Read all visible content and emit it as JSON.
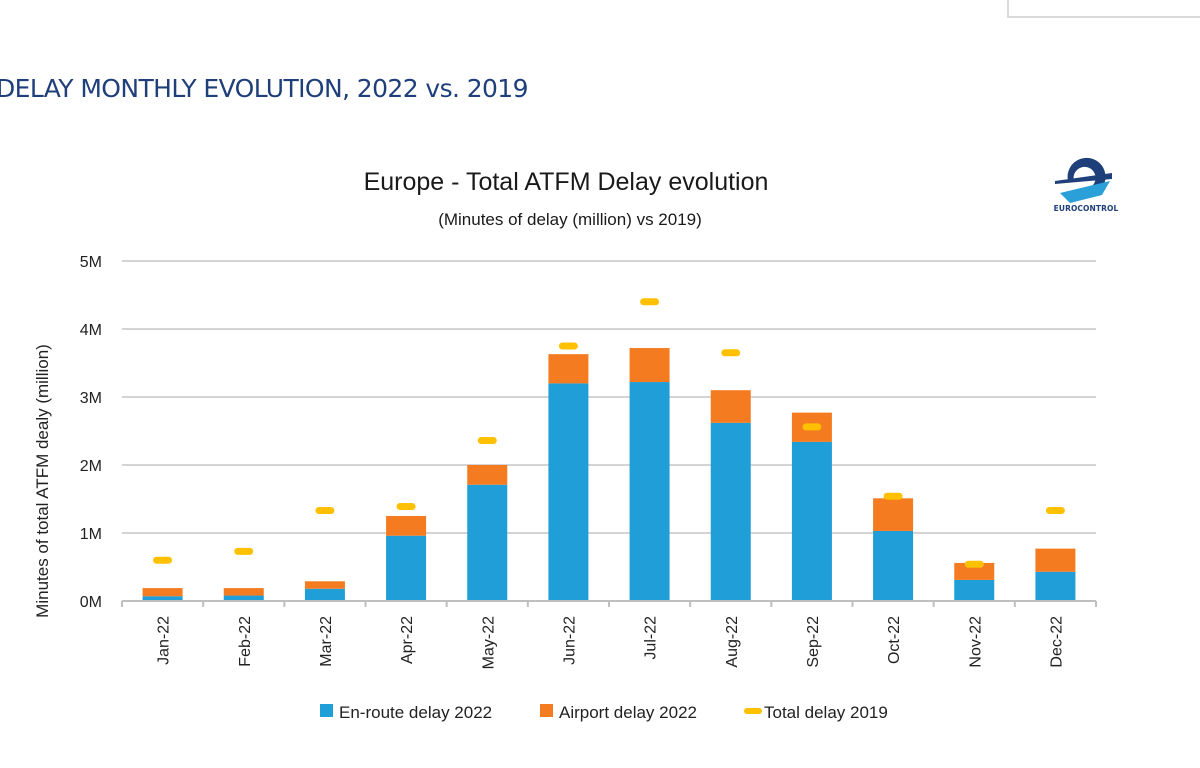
{
  "page": {
    "slide_title": "DELAY MONTHLY EVOLUTION, 2022 vs. 2019",
    "logo_text": "EUROCONTROL"
  },
  "chart_data": {
    "type": "bar",
    "stacked": true,
    "title": "Europe - Total ATFM Delay evolution",
    "subtitle": "(Minutes of delay (million) vs 2019)",
    "xlabel": "",
    "ylabel": "Minutes of total ATFM dealy (million)",
    "ylim": [
      0,
      5
    ],
    "yticks": [
      0,
      1,
      2,
      3,
      4,
      5
    ],
    "ytick_labels": [
      "0M",
      "1M",
      "2M",
      "3M",
      "4M",
      "5M"
    ],
    "grid": true,
    "legend_position": "bottom",
    "categories": [
      "Jan-22",
      "Feb-22",
      "Mar-22",
      "Apr-22",
      "May-22",
      "Jun-22",
      "Jul-22",
      "Aug-22",
      "Sep-22",
      "Oct-22",
      "Nov-22",
      "Dec-22"
    ],
    "series": [
      {
        "name": "En-route delay 2022",
        "kind": "bar",
        "color": "#1f9ed8",
        "values": [
          0.07,
          0.08,
          0.18,
          0.96,
          1.71,
          3.2,
          3.22,
          2.62,
          2.34,
          1.03,
          0.31,
          0.43
        ]
      },
      {
        "name": "Airport delay 2022",
        "kind": "bar",
        "color": "#f47b20",
        "values": [
          0.12,
          0.11,
          0.11,
          0.29,
          0.29,
          0.43,
          0.5,
          0.48,
          0.43,
          0.48,
          0.25,
          0.34
        ]
      },
      {
        "name": "Total delay 2019",
        "kind": "marker",
        "color": "#ffc000",
        "values": [
          0.6,
          0.73,
          1.33,
          1.39,
          2.36,
          3.75,
          4.4,
          3.65,
          2.56,
          1.54,
          0.54,
          1.33
        ]
      }
    ]
  }
}
